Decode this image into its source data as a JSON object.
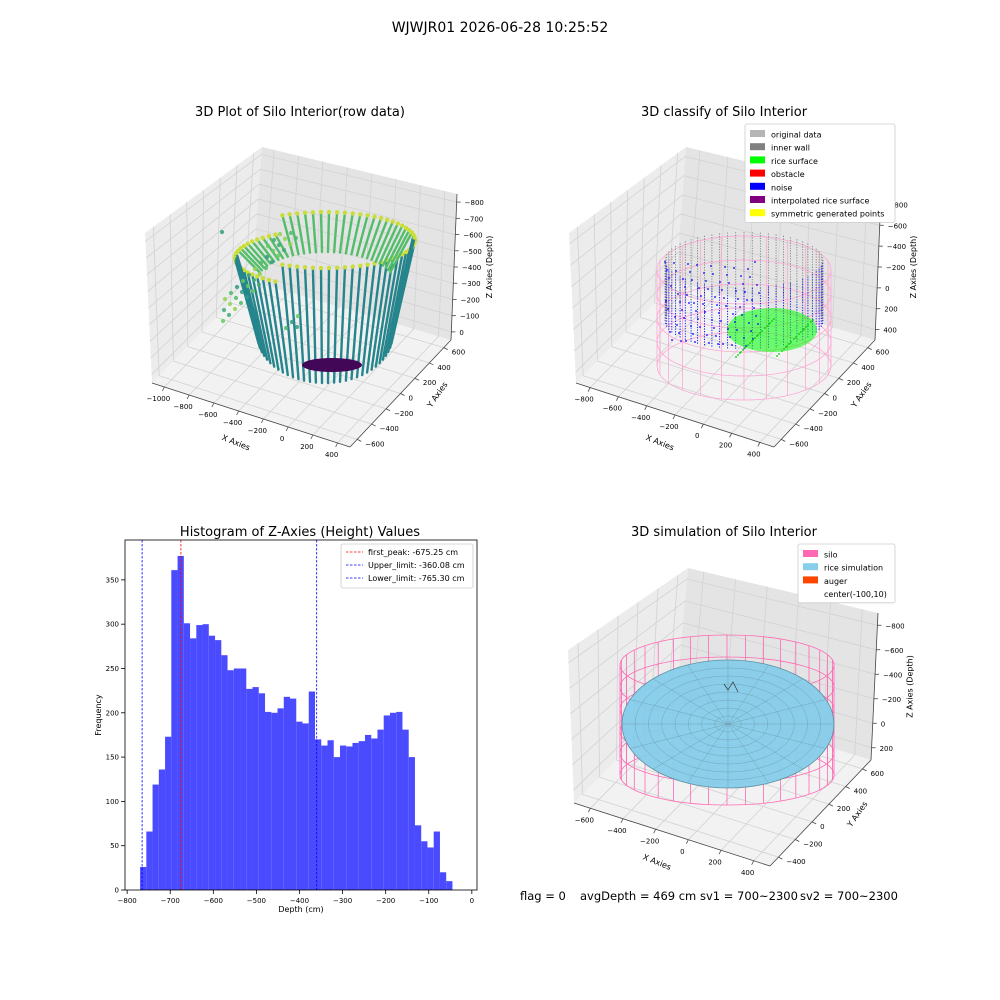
{
  "figure": {
    "suptitle": "WJWJR01 2026-06-28 10:25:52",
    "footer": {
      "flag": "flag = 0",
      "avg_depth": "avgDepth = 469 cm",
      "sv1": "sv1 = 700~2300",
      "sv2": "sv2 = 700~2300"
    }
  },
  "panels": {
    "raw": {
      "title": "3D Plot of Silo Interior(row data)",
      "xlabel": "X Axies",
      "ylabel": "Y Axies",
      "zlabel": "Z Axies (Depth)",
      "xticks": [
        "−1000",
        "−800",
        "−600",
        "−400",
        "−200",
        "0",
        "200",
        "400"
      ],
      "yticks": [
        "−600",
        "−400",
        "−200",
        "0",
        "200",
        "400",
        "600"
      ],
      "zticks": [
        "0",
        "−100",
        "−200",
        "−300",
        "−400",
        "−500",
        "−600",
        "−700",
        "−800"
      ],
      "colormap": "viridis"
    },
    "classify": {
      "title": "3D classify of Silo Interior",
      "xlabel": "X Axies",
      "ylabel": "Y Axies",
      "zlabel": "Z Axies (Depth)",
      "xticks": [
        "−800",
        "−600",
        "−400",
        "−200",
        "0",
        "200",
        "400"
      ],
      "yticks": [
        "−600",
        "−400",
        "−200",
        "0",
        "200",
        "400",
        "600"
      ],
      "zticks": [
        "400",
        "200",
        "0",
        "−200",
        "−400",
        "−600",
        "−800"
      ],
      "legend": [
        {
          "label": "original data",
          "color": "#b5b5b5"
        },
        {
          "label": "inner wall",
          "color": "#808080"
        },
        {
          "label": "rice surface",
          "color": "#00ff00"
        },
        {
          "label": "obstacle",
          "color": "#ff0000"
        },
        {
          "label": "noise",
          "color": "#0000ff"
        },
        {
          "label": "interpolated rice surface",
          "color": "#800080"
        },
        {
          "label": "symmetric generated points",
          "color": "#ffff00"
        }
      ]
    },
    "simulation": {
      "title": "3D simulation of Silo Interior",
      "xlabel": "X Axies",
      "ylabel": "Y Axies",
      "zlabel": "Z Axies (Depth)",
      "xticks": [
        "−600",
        "−400",
        "−200",
        "0",
        "200",
        "400"
      ],
      "yticks": [
        "−400",
        "−200",
        "0",
        "200",
        "400",
        "600"
      ],
      "zticks": [
        "200",
        "0",
        "−200",
        "−400",
        "−600",
        "−800"
      ],
      "legend": [
        {
          "label": "silo",
          "color": "#ff69b4"
        },
        {
          "label": "rice simulation",
          "color": "#87ceeb"
        },
        {
          "label": "auger",
          "color": "#ff4500"
        },
        {
          "label": "center(-100,10)",
          "color": "none"
        }
      ]
    }
  },
  "chart_data": {
    "type": "bar",
    "title": "Histogram of Z-Axies (Height) Values",
    "xlabel": "Depth (cm)",
    "ylabel": "Frequency",
    "xlim": [
      -805,
      12
    ],
    "ylim": [
      0,
      395
    ],
    "xticks": [
      -800,
      -700,
      -600,
      -500,
      -400,
      -300,
      -200,
      -100,
      0
    ],
    "yticks": [
      0,
      50,
      100,
      150,
      200,
      250,
      300,
      350
    ],
    "bin_start": -770,
    "bin_width": 14.5,
    "bar_color": "#4a4aff",
    "values": [
      26,
      66,
      119,
      136,
      173,
      361,
      377,
      301,
      284,
      299,
      300,
      287,
      282,
      265,
      248,
      250,
      250,
      227,
      229,
      222,
      201,
      200,
      205,
      218,
      216,
      190,
      188,
      224,
      170,
      163,
      169,
      150,
      163,
      162,
      166,
      168,
      175,
      171,
      181,
      197,
      200,
      201,
      181,
      150,
      73,
      55,
      48,
      66,
      20,
      10
    ],
    "vlines": [
      {
        "label": "first_peak: -675.25 cm",
        "x": -675.25,
        "color": "#ff0000"
      },
      {
        "label": "Upper_limit: -360.08 cm",
        "x": -360.08,
        "color": "#0000ff"
      },
      {
        "label": "Lower_limit: -765.30 cm",
        "x": -765.3,
        "color": "#0000ff"
      }
    ],
    "legend_loc": "upper right"
  }
}
